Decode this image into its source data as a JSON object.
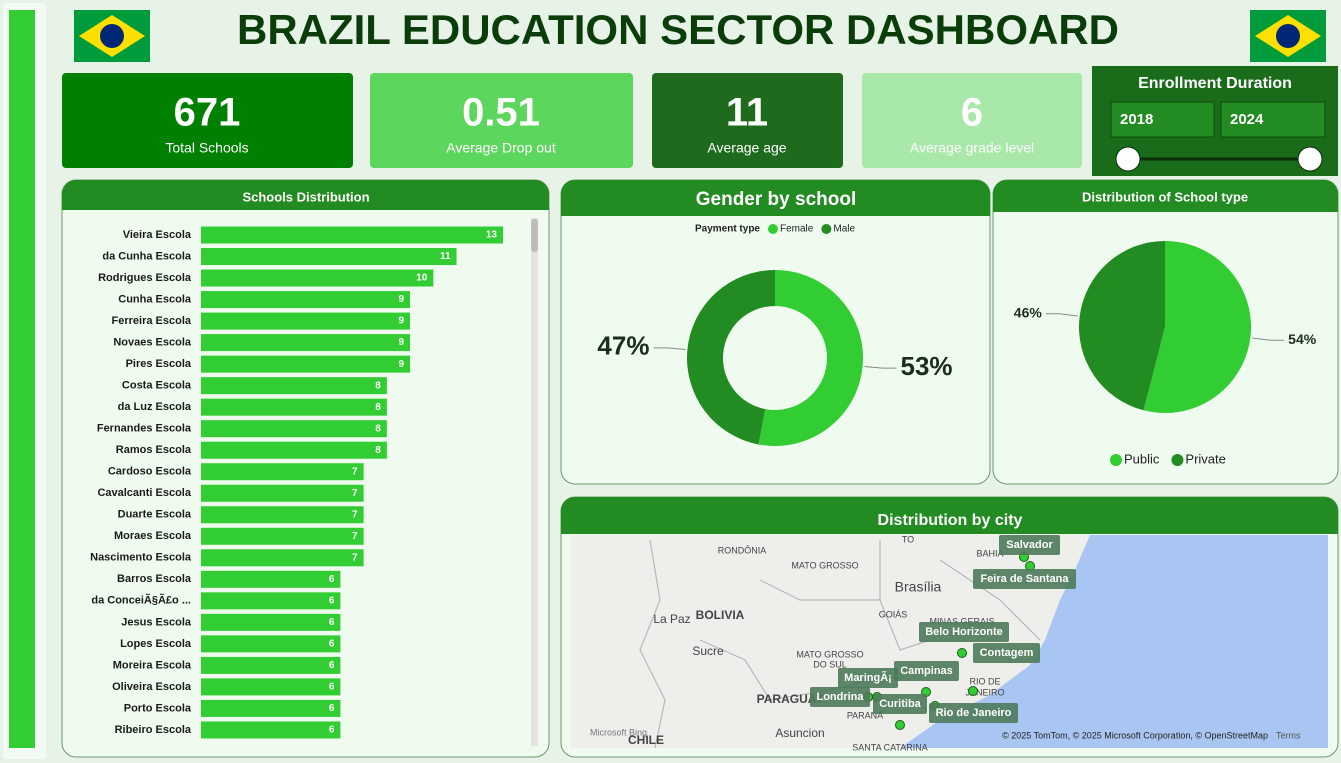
{
  "header": {
    "title": "BRAZIL EDUCATION SECTOR DASHBOARD"
  },
  "kpis": [
    {
      "value": 671,
      "label": "Total Schools"
    },
    {
      "value": 0.51,
      "label": "Average Drop out"
    },
    {
      "value": 11,
      "label": "Average age"
    },
    {
      "value": 6,
      "label": "Average grade level"
    }
  ],
  "slicer": {
    "title": "Enrollment Duration",
    "from": "2018",
    "to": "2024"
  },
  "chart_data": [
    {
      "type": "bar",
      "title": "Schools Distribution",
      "categories": [
        "Vieira Escola",
        "da Cunha Escola",
        "Rodrigues Escola",
        "Cunha Escola",
        "Ferreira Escola",
        "Novaes Escola",
        "Pires Escola",
        "Costa Escola",
        "da Luz Escola",
        "Fernandes Escola",
        "Ramos Escola",
        "Cardoso Escola",
        "Cavalcanti Escola",
        "Duarte Escola",
        "Moraes Escola",
        "Nascimento Escola",
        "Barros Escola",
        "da ConceiÃ§Ã£o ...",
        "Jesus Escola",
        "Lopes Escola",
        "Moreira Escola",
        "Oliveira Escola",
        "Porto Escola",
        "Ribeiro Escola"
      ],
      "values": [
        13,
        11,
        10,
        9,
        9,
        9,
        9,
        8,
        8,
        8,
        8,
        7,
        7,
        7,
        7,
        7,
        6,
        6,
        6,
        6,
        6,
        6,
        6,
        6
      ],
      "color": "#32cd32"
    },
    {
      "type": "donut",
      "title": "Gender by school",
      "legend_title": "Payment type",
      "categories": [
        "Female",
        "Male"
      ],
      "values": [
        53,
        47
      ],
      "value_labels": [
        "53%",
        "47%"
      ],
      "colors": [
        "#32cd32",
        "#228b22"
      ]
    },
    {
      "type": "pie",
      "title": "Distribution of School type",
      "categories": [
        "Public",
        "Private"
      ],
      "values": [
        54,
        46
      ],
      "value_labels": [
        "54%",
        "46%"
      ],
      "colors": [
        "#32cd32",
        "#228b22"
      ]
    }
  ],
  "map": {
    "title": "Distribution by city",
    "cities": [
      "Salvador",
      "Feira de Santana",
      "Belo Horizonte",
      "Contagem",
      "Campinas",
      "MaringÃ¡",
      "Londrina",
      "Curitiba",
      "Rio de Janeiro"
    ],
    "places": [
      "RONDÔNIA",
      "MATO GROSSO",
      "TO",
      "BAHIA",
      "Brasília",
      "GOIÁS",
      "BOLIVIA",
      "La Paz",
      "Sucre",
      "MINAS GERAIS",
      "MATO GROSSO",
      "DO SUL",
      "PARAGUAY",
      "Asuncion",
      "PARANÁ",
      "RIO DE",
      "JANEIRO",
      "SANTA CATARINA",
      "CHILE"
    ],
    "logo": "Microsoft Bing",
    "attribution": "© 2025 TomTom, © 2025 Microsoft Corporation, © OpenStreetMap",
    "terms": "Terms"
  }
}
